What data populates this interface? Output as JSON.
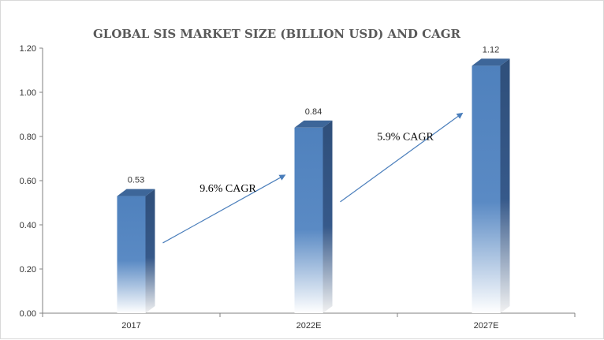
{
  "chart_data": {
    "type": "bar",
    "title": "GLOBAL SIS MARKET SIZE  (BILLION USD) AND CAGR",
    "categories": [
      "2017",
      "2022E",
      "2027E"
    ],
    "values": [
      0.53,
      0.84,
      1.12
    ],
    "value_labels": [
      "0.53",
      "0.84",
      "1.12"
    ],
    "ylim": [
      0,
      1.2
    ],
    "yticks": [
      0,
      0.2,
      0.4,
      0.6,
      0.8,
      1.0,
      1.2
    ],
    "ytick_labels": [
      "0.00",
      "0.20",
      "0.40",
      "0.60",
      "0.80",
      "1.00",
      "1.20"
    ],
    "xlabel": "",
    "ylabel": "",
    "grid": false,
    "legend": "none",
    "annotations": [
      {
        "text": "9.6% CAGR",
        "from": "2017",
        "to": "2022E"
      },
      {
        "text": "5.9% CAGR",
        "from": "2022E",
        "to": "2027E"
      }
    ],
    "colors": {
      "bar_front": "#4f81bd",
      "bar_side": "#2f4f7a",
      "bar_top": "#3d6699",
      "arrow": "#4a7ebb",
      "axis": "#808080"
    }
  }
}
